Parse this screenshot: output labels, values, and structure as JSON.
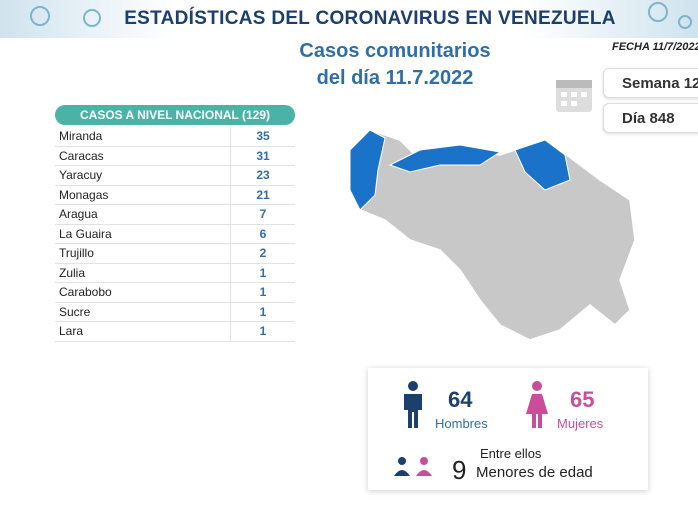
{
  "header": {
    "title": "ESTADÍSTICAS DEL CORONAVIRUS EN VENEZUELA"
  },
  "subtitle": [
    "Casos comunitarios",
    "del día 11.7.2022"
  ],
  "fecha": "FECHA 11/7/2022",
  "semana": "Semana 12",
  "dia": "Día 848",
  "table": {
    "title": "CASOS A NIVEL NACIONAL (129)",
    "rows": [
      [
        "Miranda",
        35
      ],
      [
        "Caracas",
        31
      ],
      [
        "Yaracuy",
        23
      ],
      [
        "Monagas",
        21
      ],
      [
        "Aragua",
        7
      ],
      [
        "La Guaira",
        6
      ],
      [
        "Trujillo",
        2
      ],
      [
        "Zulia",
        1
      ],
      [
        "Carabobo",
        1
      ],
      [
        "Sucre",
        1
      ],
      [
        "Lara",
        1
      ]
    ]
  },
  "gender": {
    "men": 64,
    "men_label": "Hombres",
    "women": 65,
    "women_label": "Mujeres"
  },
  "minors": {
    "intro": "Entre ellos",
    "count": 9,
    "label": "Menores de edad"
  }
}
